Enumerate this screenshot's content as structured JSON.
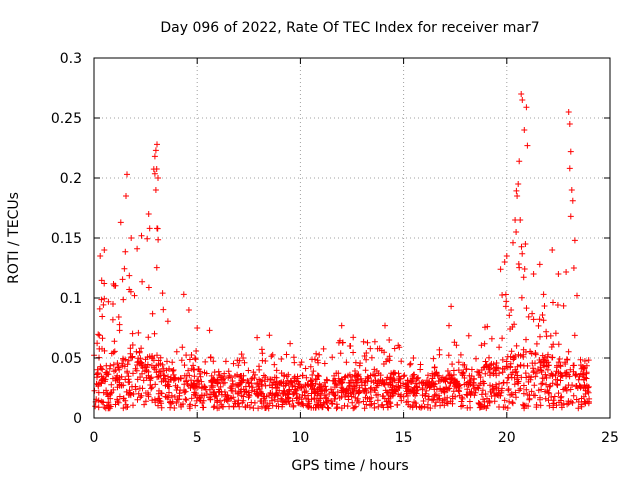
{
  "chart_data": {
    "type": "scatter",
    "title": "Day 096 of 2022, Rate Of TEC Index for receiver mar7",
    "xlabel": "GPS time / hours",
    "ylabel": "ROTI / TECUs",
    "xlim": [
      0,
      25
    ],
    "ylim": [
      0,
      0.3
    ],
    "xticks": [
      0,
      5,
      10,
      15,
      20,
      25
    ],
    "xtick_labels": [
      "0",
      "5",
      "10",
      "15",
      "20",
      "25"
    ],
    "yticks": [
      0,
      0.05,
      0.1,
      0.15,
      0.2,
      0.25,
      0.3
    ],
    "ytick_labels": [
      "0",
      "0.05",
      "0.1",
      "0.15",
      "0.2",
      "0.25",
      "0.3"
    ],
    "grid": true,
    "marker": "+",
    "color": "#ff0000",
    "series": [
      {
        "name": "ROTI",
        "envelope": [
          {
            "x": 0.0,
            "baseline": 0.022,
            "upper": 0.1
          },
          {
            "x": 0.5,
            "baseline": 0.03,
            "upper": 0.13
          },
          {
            "x": 1.0,
            "baseline": 0.03,
            "upper": 0.12
          },
          {
            "x": 1.5,
            "baseline": 0.035,
            "upper": 0.16
          },
          {
            "x": 2.0,
            "baseline": 0.04,
            "upper": 0.14
          },
          {
            "x": 2.5,
            "baseline": 0.04,
            "upper": 0.16
          },
          {
            "x": 3.0,
            "baseline": 0.04,
            "upper": 0.22
          },
          {
            "x": 3.5,
            "baseline": 0.03,
            "upper": 0.09
          },
          {
            "x": 4.0,
            "baseline": 0.03,
            "upper": 0.07
          },
          {
            "x": 5.0,
            "baseline": 0.025,
            "upper": 0.06
          },
          {
            "x": 6.0,
            "baseline": 0.022,
            "upper": 0.05
          },
          {
            "x": 8.0,
            "baseline": 0.02,
            "upper": 0.06
          },
          {
            "x": 10.0,
            "baseline": 0.02,
            "upper": 0.05
          },
          {
            "x": 12.0,
            "baseline": 0.02,
            "upper": 0.07
          },
          {
            "x": 14.0,
            "baseline": 0.022,
            "upper": 0.07
          },
          {
            "x": 16.0,
            "baseline": 0.022,
            "upper": 0.05
          },
          {
            "x": 18.0,
            "baseline": 0.025,
            "upper": 0.07
          },
          {
            "x": 19.5,
            "baseline": 0.03,
            "upper": 0.08
          },
          {
            "x": 20.0,
            "baseline": 0.035,
            "upper": 0.13
          },
          {
            "x": 20.5,
            "baseline": 0.04,
            "upper": 0.2
          },
          {
            "x": 21.0,
            "baseline": 0.04,
            "upper": 0.15
          },
          {
            "x": 21.5,
            "baseline": 0.04,
            "upper": 0.1
          },
          {
            "x": 22.0,
            "baseline": 0.035,
            "upper": 0.12
          },
          {
            "x": 22.5,
            "baseline": 0.035,
            "upper": 0.1
          },
          {
            "x": 23.0,
            "baseline": 0.035,
            "upper": 0.22
          },
          {
            "x": 23.5,
            "baseline": 0.03,
            "upper": 0.09
          },
          {
            "x": 24.0,
            "baseline": 0.025,
            "upper": 0.05
          }
        ],
        "outliers": [
          {
            "x": 1.3,
            "y": 0.163
          },
          {
            "x": 1.55,
            "y": 0.185
          },
          {
            "x": 1.6,
            "y": 0.203
          },
          {
            "x": 1.8,
            "y": 0.15
          },
          {
            "x": 2.7,
            "y": 0.158
          },
          {
            "x": 2.65,
            "y": 0.17
          },
          {
            "x": 2.95,
            "y": 0.218
          },
          {
            "x": 3.0,
            "y": 0.223
          },
          {
            "x": 3.05,
            "y": 0.228
          },
          {
            "x": 3.1,
            "y": 0.2
          },
          {
            "x": 3.0,
            "y": 0.19
          },
          {
            "x": 3.05,
            "y": 0.158
          },
          {
            "x": 0.3,
            "y": 0.135
          },
          {
            "x": 0.5,
            "y": 0.14
          },
          {
            "x": 4.35,
            "y": 0.103
          },
          {
            "x": 4.6,
            "y": 0.09
          },
          {
            "x": 5.0,
            "y": 0.075
          },
          {
            "x": 5.6,
            "y": 0.073
          },
          {
            "x": 7.9,
            "y": 0.067
          },
          {
            "x": 8.5,
            "y": 0.069
          },
          {
            "x": 9.5,
            "y": 0.062
          },
          {
            "x": 12.0,
            "y": 0.077
          },
          {
            "x": 12.4,
            "y": 0.06
          },
          {
            "x": 14.1,
            "y": 0.077
          },
          {
            "x": 14.3,
            "y": 0.065
          },
          {
            "x": 17.2,
            "y": 0.077
          },
          {
            "x": 17.3,
            "y": 0.093
          },
          {
            "x": 19.7,
            "y": 0.124
          },
          {
            "x": 19.9,
            "y": 0.13
          },
          {
            "x": 20.0,
            "y": 0.135
          },
          {
            "x": 20.3,
            "y": 0.146
          },
          {
            "x": 20.4,
            "y": 0.165
          },
          {
            "x": 20.45,
            "y": 0.155
          },
          {
            "x": 20.5,
            "y": 0.185
          },
          {
            "x": 20.55,
            "y": 0.195
          },
          {
            "x": 20.6,
            "y": 0.214
          },
          {
            "x": 20.7,
            "y": 0.27
          },
          {
            "x": 20.75,
            "y": 0.265
          },
          {
            "x": 20.95,
            "y": 0.259
          },
          {
            "x": 20.85,
            "y": 0.24
          },
          {
            "x": 21.0,
            "y": 0.227
          },
          {
            "x": 20.65,
            "y": 0.165
          },
          {
            "x": 20.9,
            "y": 0.145
          },
          {
            "x": 21.3,
            "y": 0.12
          },
          {
            "x": 21.6,
            "y": 0.128
          },
          {
            "x": 22.2,
            "y": 0.14
          },
          {
            "x": 22.5,
            "y": 0.12
          },
          {
            "x": 23.0,
            "y": 0.255
          },
          {
            "x": 23.05,
            "y": 0.245
          },
          {
            "x": 23.1,
            "y": 0.222
          },
          {
            "x": 23.05,
            "y": 0.208
          },
          {
            "x": 23.15,
            "y": 0.19
          },
          {
            "x": 23.2,
            "y": 0.181
          },
          {
            "x": 23.1,
            "y": 0.168
          },
          {
            "x": 23.3,
            "y": 0.148
          },
          {
            "x": 23.25,
            "y": 0.125
          },
          {
            "x": 23.4,
            "y": 0.102
          }
        ]
      }
    ]
  }
}
